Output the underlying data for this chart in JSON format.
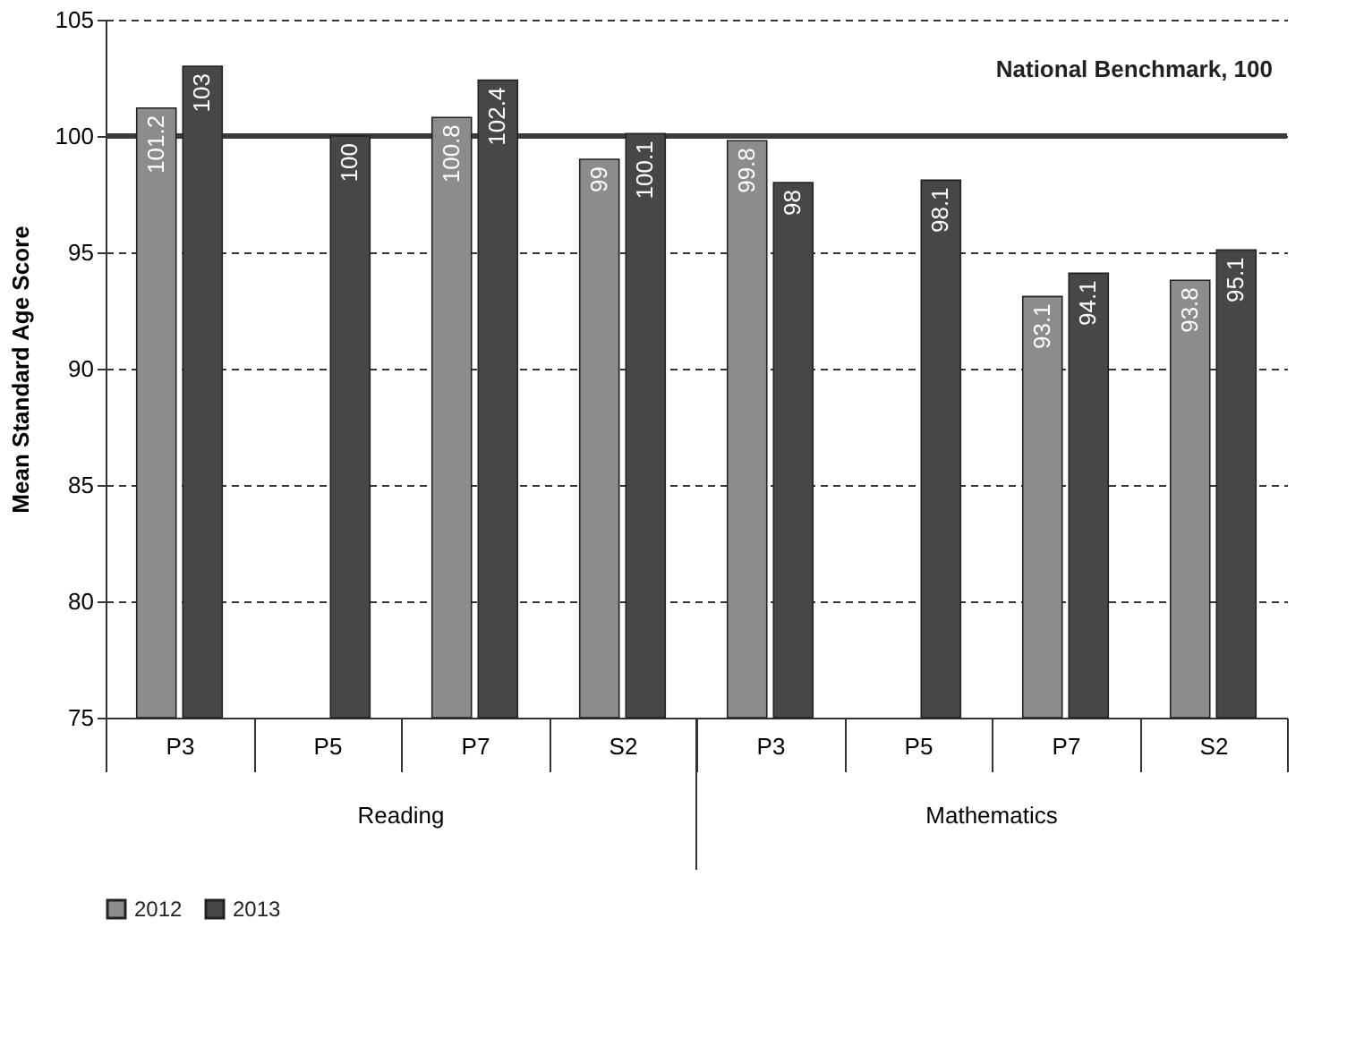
{
  "chart_data": {
    "type": "bar",
    "ylabel": "Mean Standard Age Score",
    "categories": [
      "P3",
      "P5",
      "P7",
      "S2",
      "P3",
      "P5",
      "P7",
      "S2"
    ],
    "series": [
      {
        "name": "2012",
        "color": "#8c8c8c",
        "values": [
          101.2,
          null,
          100.8,
          99,
          99.8,
          null,
          93.1,
          93.8
        ]
      },
      {
        "name": "2013",
        "color": "#474747",
        "values": [
          103,
          100,
          102.4,
          100.1,
          98,
          98.1,
          94.1,
          95.1
        ]
      }
    ],
    "ylim": [
      75,
      105
    ],
    "yticks": [
      75,
      80,
      85,
      90,
      95,
      100,
      105
    ],
    "grid": "y",
    "legend": "bottom",
    "data_labels": true,
    "ref_lines": [
      {
        "axis": "y",
        "value": 100,
        "label": "National Benchmark, 100",
        "color": "#3a3a3a"
      }
    ],
    "annotations": [
      "Reading",
      "Mathematics"
    ]
  }
}
